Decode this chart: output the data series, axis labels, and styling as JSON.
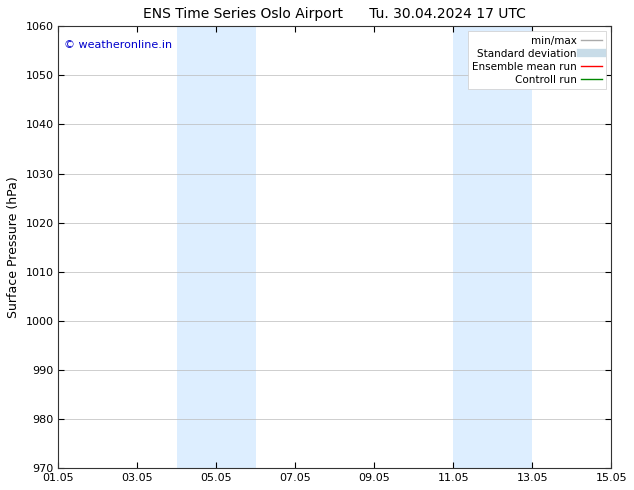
{
  "title_left": "ENS Time Series Oslo Airport",
  "title_right": "Tu. 30.04.2024 17 UTC",
  "ylabel": "Surface Pressure (hPa)",
  "ylim": [
    970,
    1060
  ],
  "yticks": [
    970,
    980,
    990,
    1000,
    1010,
    1020,
    1030,
    1040,
    1050,
    1060
  ],
  "xtick_labels": [
    "01.05",
    "03.05",
    "05.05",
    "07.05",
    "09.05",
    "11.05",
    "13.05",
    "15.05"
  ],
  "xtick_positions": [
    0,
    2,
    4,
    6,
    8,
    10,
    12,
    14
  ],
  "xlim": [
    0,
    14
  ],
  "shaded_bands": [
    {
      "x_start": 3.0,
      "x_end": 5.0
    },
    {
      "x_start": 10.0,
      "x_end": 12.0
    }
  ],
  "shaded_color": "#ddeeff",
  "watermark_text": "© weatheronline.in",
  "watermark_color": "#0000cc",
  "legend_items": [
    {
      "label": "min/max",
      "color": "#aaaaaa",
      "lw": 1.0,
      "ls": "-",
      "type": "line"
    },
    {
      "label": "Standard deviation",
      "color": "#c8dce8",
      "lw": 6,
      "ls": "-",
      "type": "line"
    },
    {
      "label": "Ensemble mean run",
      "color": "#ff0000",
      "lw": 1.0,
      "ls": "-",
      "type": "line"
    },
    {
      "label": "Controll run",
      "color": "#008800",
      "lw": 1.0,
      "ls": "-",
      "type": "line"
    }
  ],
  "background_color": "#ffffff",
  "grid_color": "#bbbbbb",
  "title_fontsize": 10,
  "label_fontsize": 9,
  "tick_fontsize": 8,
  "legend_fontsize": 7.5
}
